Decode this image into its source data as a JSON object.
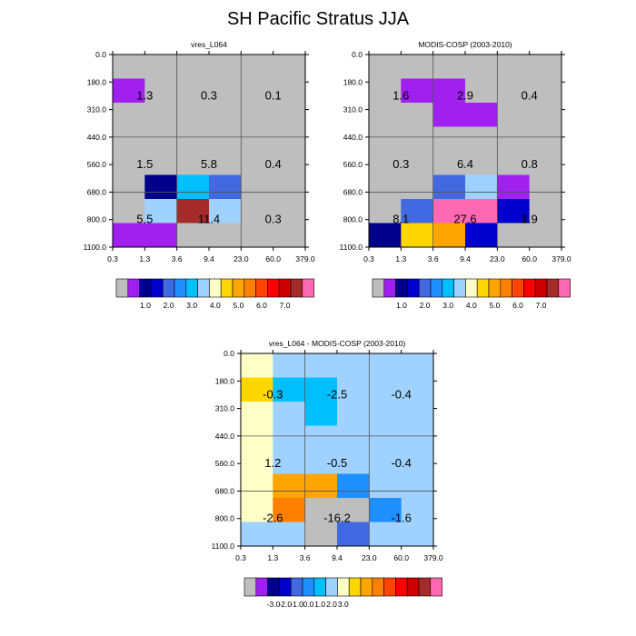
{
  "title": "SH Pacific Stratus JJA",
  "colors": {
    "palette": [
      "#bebebe",
      "#a020f0",
      "#00008b",
      "#0000cd",
      "#4169e1",
      "#1e90ff",
      "#00bfff",
      "#a0d2ff",
      "#ffffc8",
      "#ffd700",
      "#ffa500",
      "#ff7f00",
      "#ff4500",
      "#ff0000",
      "#cd0000",
      "#a52a2a",
      "#ff69b4"
    ]
  },
  "chart_data": [
    {
      "type": "heatmap",
      "id": "a",
      "title": "vres_L064",
      "x_ticks": [
        "0.3",
        "1.3",
        "3.6",
        "9.4",
        "23.0",
        "60.0",
        "379.0"
      ],
      "y_ticks": [
        "0.0",
        "180.0",
        "310.0",
        "440.0",
        "560.0",
        "680.0",
        "800.0",
        "1100.0"
      ],
      "x_range": [
        "0.3",
        "379.0"
      ],
      "y_range": [
        "0.0",
        "1100.0"
      ],
      "grid": true,
      "cells": [
        [
          0,
          0,
          0,
          0,
          0,
          0
        ],
        [
          1,
          0,
          0,
          0,
          0,
          0
        ],
        [
          0,
          0,
          0,
          0,
          0,
          0
        ],
        [
          0,
          0,
          0,
          0,
          0,
          0
        ],
        [
          0,
          0,
          0,
          0,
          0,
          0
        ],
        [
          0,
          2,
          6,
          4,
          0,
          0
        ],
        [
          0,
          7,
          15,
          7,
          0,
          0
        ],
        [
          1,
          1,
          0,
          0,
          0,
          0
        ]
      ],
      "annotations": [
        {
          "text": "1.3",
          "col": 1,
          "row": 1.5
        },
        {
          "text": "0.3",
          "col": 3,
          "row": 1.5
        },
        {
          "text": "0.1",
          "col": 5,
          "row": 1.5
        },
        {
          "text": "1.5",
          "col": 1,
          "row": 4
        },
        {
          "text": "5.8",
          "col": 3,
          "row": 4
        },
        {
          "text": "0.4",
          "col": 5,
          "row": 4
        },
        {
          "text": "5.5",
          "col": 1,
          "row": 6
        },
        {
          "text": "11.4",
          "col": 3,
          "row": 6
        },
        {
          "text": "0.3",
          "col": 5,
          "row": 6
        }
      ],
      "colorbar": {
        "labels": [
          "1.0",
          "2.0",
          "3.0",
          "4.0",
          "5.0",
          "6.0",
          "7.0"
        ],
        "label_slots": [
          1.5,
          3.5,
          5.5,
          7.5,
          9.5,
          11.5,
          13.5
        ]
      }
    },
    {
      "type": "heatmap",
      "id": "b",
      "title": "MODIS-COSP (2003-2010)",
      "x_ticks": [
        "0.3",
        "1.3",
        "3.6",
        "9.4",
        "23.0",
        "60.0",
        "379.0"
      ],
      "y_ticks": [
        "0.0",
        "180.0",
        "310.0",
        "440.0",
        "560.0",
        "680.0",
        "800.0",
        "1100.0"
      ],
      "x_range": [
        "0.3",
        "379.0"
      ],
      "y_range": [
        "0.0",
        "1100.0"
      ],
      "grid": true,
      "cells": [
        [
          0,
          0,
          0,
          0,
          0,
          0
        ],
        [
          0,
          1,
          1,
          0,
          0,
          0
        ],
        [
          0,
          0,
          1,
          1,
          0,
          0
        ],
        [
          0,
          0,
          0,
          0,
          0,
          0
        ],
        [
          0,
          0,
          0,
          0,
          0,
          0
        ],
        [
          0,
          0,
          4,
          7,
          1,
          0
        ],
        [
          0,
          4,
          16,
          16,
          3,
          0
        ],
        [
          2,
          9,
          10,
          3,
          0,
          0
        ]
      ],
      "annotations": [
        {
          "text": "1.6",
          "col": 1,
          "row": 1.5
        },
        {
          "text": "2.9",
          "col": 3,
          "row": 1.5
        },
        {
          "text": "0.4",
          "col": 5,
          "row": 1.5
        },
        {
          "text": "0.3",
          "col": 1,
          "row": 4
        },
        {
          "text": "6.4",
          "col": 3,
          "row": 4
        },
        {
          "text": "0.8",
          "col": 5,
          "row": 4
        },
        {
          "text": "8.1",
          "col": 1,
          "row": 6
        },
        {
          "text": "27.6",
          "col": 3,
          "row": 6
        },
        {
          "text": "1.9",
          "col": 5,
          "row": 6
        }
      ],
      "colorbar": {
        "labels": [
          "1.0",
          "2.0",
          "3.0",
          "4.0",
          "5.0",
          "6.0",
          "7.0"
        ],
        "label_slots": [
          1.5,
          3.5,
          5.5,
          7.5,
          9.5,
          11.5,
          13.5
        ]
      }
    },
    {
      "type": "heatmap",
      "id": "c",
      "title": "vres_L064 - MODIS-COSP (2003-2010)",
      "x_ticks": [
        "0.3",
        "1.3",
        "3.6",
        "9.4",
        "23.0",
        "60.0",
        "379.0"
      ],
      "y_ticks": [
        "0.0",
        "180.0",
        "310.0",
        "440.0",
        "560.0",
        "680.0",
        "800.0",
        "1100.0"
      ],
      "x_range": [
        "0.3",
        "379.0"
      ],
      "y_range": [
        "0.0",
        "1100.0"
      ],
      "grid": true,
      "cells": [
        [
          8,
          7,
          7,
          7,
          7,
          7
        ],
        [
          9,
          6,
          6,
          7,
          7,
          7
        ],
        [
          8,
          7,
          6,
          7,
          7,
          7
        ],
        [
          8,
          7,
          7,
          7,
          7,
          7
        ],
        [
          8,
          7,
          7,
          7,
          7,
          7
        ],
        [
          8,
          10,
          10,
          5,
          7,
          7
        ],
        [
          8,
          11,
          0,
          0,
          5,
          7
        ],
        [
          7,
          7,
          0,
          4,
          7,
          7
        ]
      ],
      "annotations": [
        {
          "text": "-0.3",
          "col": 1,
          "row": 1.5
        },
        {
          "text": "-2.5",
          "col": 3,
          "row": 1.5
        },
        {
          "text": "-0.4",
          "col": 5,
          "row": 1.5
        },
        {
          "text": "1.2",
          "col": 1,
          "row": 4
        },
        {
          "text": "-0.5",
          "col": 3,
          "row": 4
        },
        {
          "text": "-0.4",
          "col": 5,
          "row": 4
        },
        {
          "text": "-2.6",
          "col": 1,
          "row": 6
        },
        {
          "text": "-16.2",
          "col": 3,
          "row": 6
        },
        {
          "text": "-1.6",
          "col": 5,
          "row": 6
        }
      ],
      "colorbar": {
        "labels": [
          "-3.0",
          "-2.0",
          "-1.0",
          "0.0",
          "1.0",
          "2.0",
          "3.0"
        ],
        "label_slots": [
          1.5,
          2.5,
          3.5,
          4.5,
          5.5,
          6.5,
          7.5
        ]
      }
    }
  ]
}
